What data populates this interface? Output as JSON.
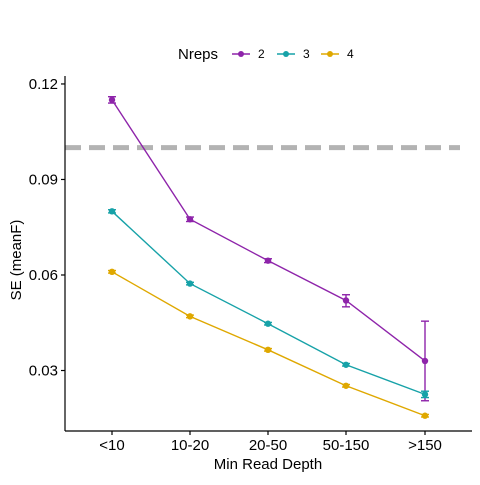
{
  "chart_data": {
    "type": "line",
    "xlabel": "Min Read Depth",
    "ylabel": "SE (meanF)",
    "categories": [
      "<10",
      "10-20",
      "20-50",
      "50-150",
      ">150"
    ],
    "ylim": [
      0.011,
      0.1225
    ],
    "yticks": [
      0.03,
      0.06,
      0.09,
      0.12
    ],
    "ytick_labels": [
      "0.03",
      "0.06",
      "0.09",
      "0.12"
    ],
    "legend": {
      "title": "Nreps",
      "position": "top"
    },
    "reference_line": {
      "y": 0.1,
      "style": "dashed",
      "color": "#b3b3b3"
    },
    "grid": false,
    "series": [
      {
        "name": "2",
        "color": "#8e24aa",
        "values": [
          0.115,
          0.0775,
          0.0645,
          0.052,
          0.033
        ],
        "err_low": [
          0.114,
          0.0768,
          0.0639,
          0.05,
          0.0205
        ],
        "err_high": [
          0.116,
          0.0782,
          0.0651,
          0.0538,
          0.0455
        ]
      },
      {
        "name": "3",
        "color": "#17a2a8",
        "values": [
          0.08,
          0.0573,
          0.0447,
          0.0318,
          0.0225
        ],
        "err_low": [
          0.0795,
          0.0569,
          0.0443,
          0.0314,
          0.0215
        ],
        "err_high": [
          0.0805,
          0.0577,
          0.0451,
          0.0322,
          0.0235
        ]
      },
      {
        "name": "4",
        "color": "#dfa800",
        "values": [
          0.061,
          0.047,
          0.0365,
          0.0252,
          0.0158
        ],
        "err_low": [
          0.0606,
          0.0466,
          0.0361,
          0.0248,
          0.0154
        ],
        "err_high": [
          0.0614,
          0.0474,
          0.0369,
          0.0256,
          0.0162
        ]
      }
    ]
  }
}
